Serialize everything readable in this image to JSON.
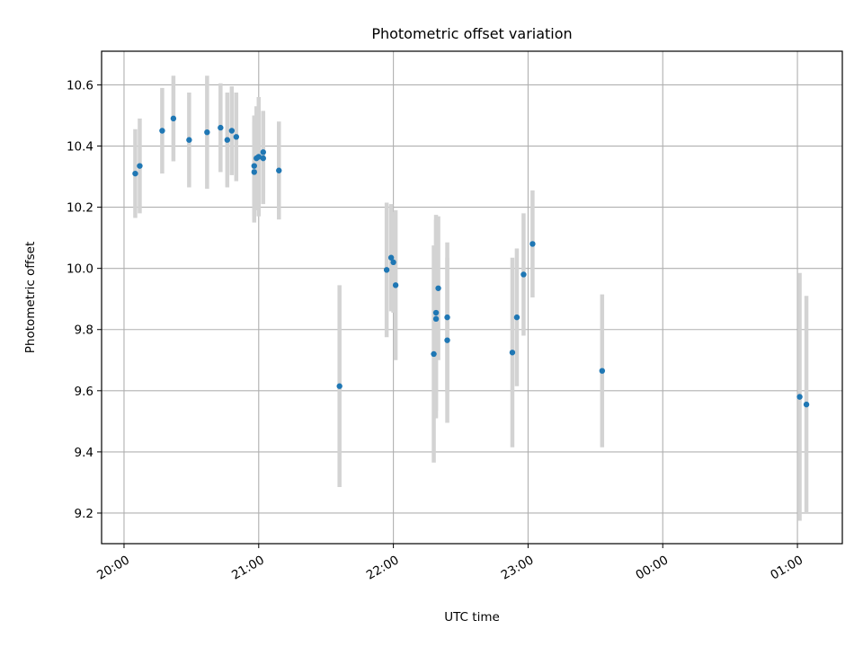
{
  "chart_data": {
    "type": "scatter",
    "title": "Photometric offset variation",
    "xlabel": "UTC time",
    "ylabel": "Photometric offset",
    "x_ticks": [
      "20:00",
      "21:00",
      "22:00",
      "23:00",
      "00:00",
      "01:00"
    ],
    "y_ticks": [
      "9.2",
      "9.4",
      "9.6",
      "9.8",
      "10.0",
      "10.2",
      "10.4",
      "10.6"
    ],
    "xlim": [
      "19:50",
      "01:20"
    ],
    "ylim": [
      9.1,
      10.71
    ],
    "grid": true,
    "marker_color": "#1f77b4",
    "errorbar_color": "#d3d3d3",
    "points": [
      {
        "x": "20:05",
        "y": 10.31,
        "err": 0.145
      },
      {
        "x": "20:07",
        "y": 10.335,
        "err": 0.155
      },
      {
        "x": "20:17",
        "y": 10.45,
        "err": 0.14
      },
      {
        "x": "20:22",
        "y": 10.49,
        "err": 0.14
      },
      {
        "x": "20:29",
        "y": 10.42,
        "err": 0.155
      },
      {
        "x": "20:37",
        "y": 10.445,
        "err": 0.185
      },
      {
        "x": "20:43",
        "y": 10.46,
        "err": 0.145
      },
      {
        "x": "20:46",
        "y": 10.42,
        "err": 0.155
      },
      {
        "x": "20:48",
        "y": 10.45,
        "err": 0.145
      },
      {
        "x": "20:50",
        "y": 10.43,
        "err": 0.145
      },
      {
        "x": "20:58",
        "y": 10.315,
        "err": 0.165
      },
      {
        "x": "20:58",
        "y": 10.335,
        "err": 0.165
      },
      {
        "x": "20:59",
        "y": 10.36,
        "err": 0.17
      },
      {
        "x": "21:00",
        "y": 10.365,
        "err": 0.195
      },
      {
        "x": "21:02",
        "y": 10.38,
        "err": 0.135
      },
      {
        "x": "21:02",
        "y": 10.36,
        "err": 0.15
      },
      {
        "x": "21:09",
        "y": 10.32,
        "err": 0.16
      },
      {
        "x": "21:36",
        "y": 9.615,
        "err": 0.33
      },
      {
        "x": "21:57",
        "y": 9.995,
        "err": 0.22
      },
      {
        "x": "21:59",
        "y": 10.035,
        "err": 0.175
      },
      {
        "x": "22:00",
        "y": 10.02,
        "err": 0.165
      },
      {
        "x": "22:01",
        "y": 9.945,
        "err": 0.245
      },
      {
        "x": "22:18",
        "y": 9.72,
        "err": 0.355
      },
      {
        "x": "22:19",
        "y": 9.835,
        "err": 0.325
      },
      {
        "x": "22:19",
        "y": 9.855,
        "err": 0.32
      },
      {
        "x": "22:20",
        "y": 9.935,
        "err": 0.235
      },
      {
        "x": "22:24",
        "y": 9.84,
        "err": 0.245
      },
      {
        "x": "22:24",
        "y": 9.765,
        "err": 0.27
      },
      {
        "x": "22:53",
        "y": 9.725,
        "err": 0.31
      },
      {
        "x": "22:55",
        "y": 9.84,
        "err": 0.225
      },
      {
        "x": "22:58",
        "y": 9.98,
        "err": 0.2
      },
      {
        "x": "23:02",
        "y": 10.08,
        "err": 0.175
      },
      {
        "x": "23:33",
        "y": 9.665,
        "err": 0.25
      },
      {
        "x": "01:01",
        "y": 9.58,
        "err": 0.405
      },
      {
        "x": "01:04",
        "y": 9.555,
        "err": 0.355
      }
    ]
  }
}
